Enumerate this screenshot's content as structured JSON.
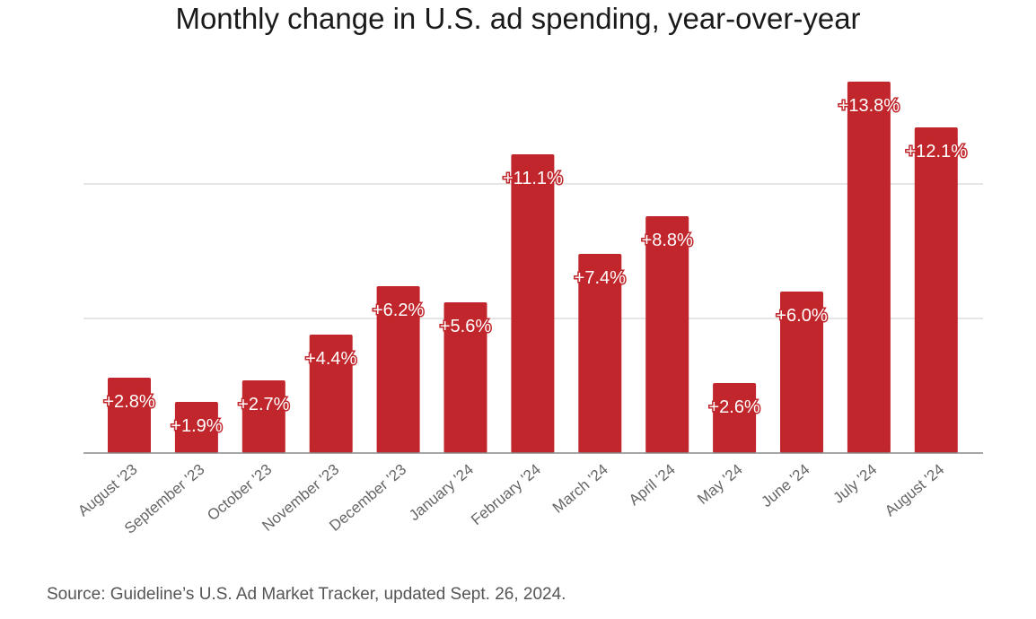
{
  "title": "Monthly change in U.S. ad spending, year-over-year",
  "source": "Source: Guideline’s U.S. Ad Market Tracker, updated Sept. 26, 2024.",
  "colors": {
    "bar": "#c0262b",
    "grid": "#dddddd",
    "axis": "#888888"
  },
  "chart_data": {
    "type": "bar",
    "title": "Monthly change in U.S. ad spending, year-over-year",
    "categories": [
      "August '23",
      "September '23",
      "October '23",
      "November '23",
      "December '23",
      "January '24",
      "February '24",
      "March '24",
      "April '24",
      "May '24",
      "June '24",
      "July '24",
      "August '24"
    ],
    "values": [
      2.8,
      1.9,
      2.7,
      4.4,
      6.2,
      5.6,
      11.1,
      7.4,
      8.8,
      2.6,
      6.0,
      13.8,
      12.1
    ],
    "data_labels": [
      "+2.8%",
      "+1.9%",
      "+2.7%",
      "+4.4%",
      "+6.2%",
      "+5.6%",
      "+11.1%",
      "+7.4%",
      "+8.8%",
      "+2.6%",
      "+6.0%",
      "+13.8%",
      "+12.1%"
    ],
    "xlabel": "",
    "ylabel": "",
    "ylim": [
      0,
      15
    ],
    "gridlines": [
      5,
      10
    ],
    "grid": true,
    "legend": false
  }
}
